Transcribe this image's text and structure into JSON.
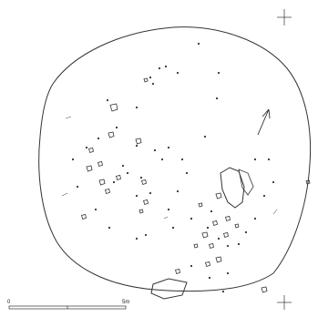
{
  "scale_bar": {
    "start": "0",
    "end": "5m"
  }
}
